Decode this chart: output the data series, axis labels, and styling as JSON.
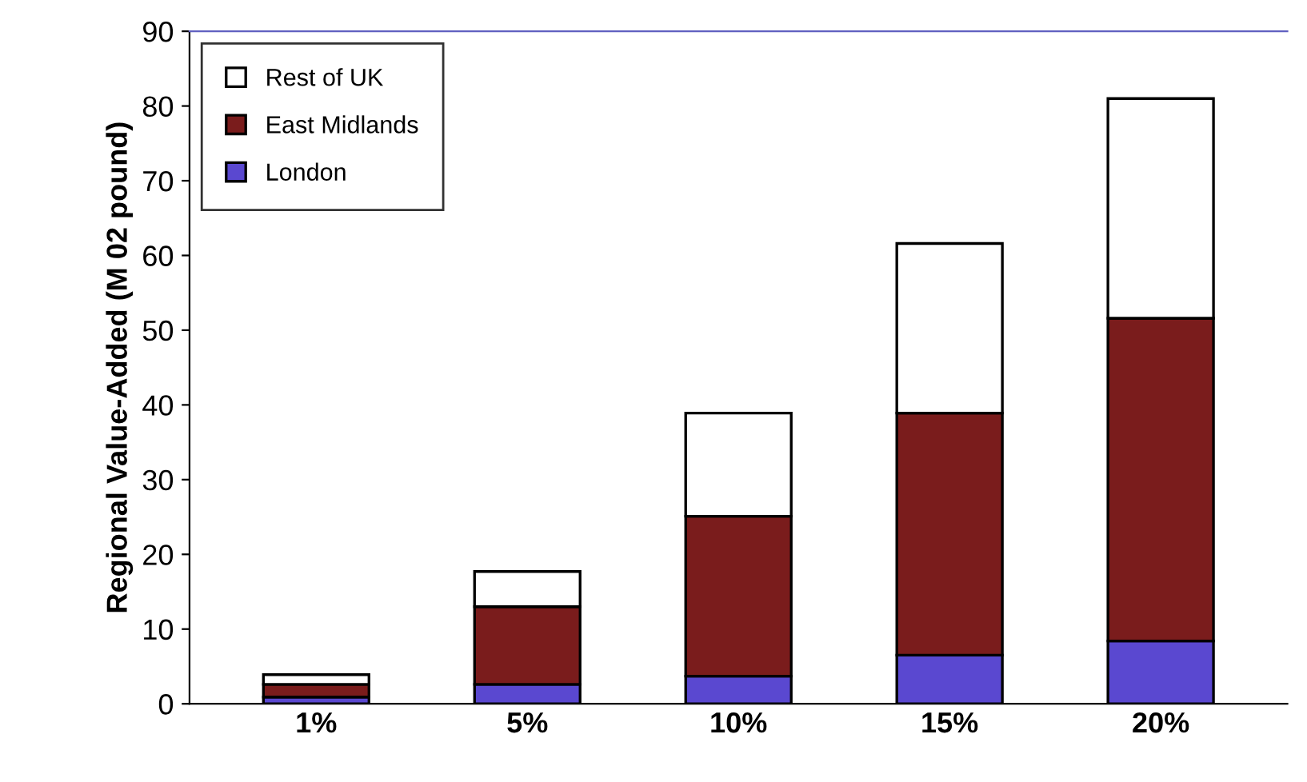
{
  "chart_data": {
    "type": "bar",
    "stacked": true,
    "ylabel": "Regional Value-Added (M 02 pound)",
    "categories": [
      "1%",
      "5%",
      "10%",
      "15%",
      "20%"
    ],
    "series": [
      {
        "name": "London",
        "color": "#5a48d0",
        "values": [
          0.9,
          2.6,
          3.7,
          6.5,
          8.4
        ]
      },
      {
        "name": "East Midlands",
        "color": "#7a1c1c",
        "values": [
          1.7,
          10.4,
          21.4,
          32.4,
          43.2
        ]
      },
      {
        "name": "Rest of UK",
        "color": "#ffffff",
        "values": [
          1.3,
          4.7,
          13.8,
          22.7,
          29.4
        ]
      }
    ],
    "ylim": [
      0,
      90
    ],
    "yticks": [
      0,
      10,
      20,
      30,
      40,
      50,
      60,
      70,
      80,
      90
    ],
    "grid": false,
    "legend": "top left"
  }
}
